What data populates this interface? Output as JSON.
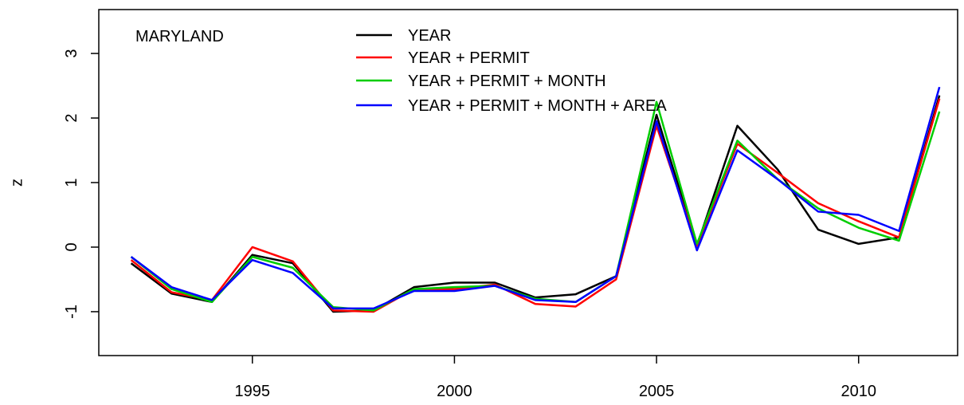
{
  "chart_data": {
    "type": "line",
    "annotation": "MARYLAND",
    "y_label": "z",
    "x": [
      1992,
      1993,
      1994,
      1995,
      1996,
      1997,
      1998,
      1999,
      2000,
      2001,
      2002,
      2003,
      2004,
      2005,
      2006,
      2007,
      2008,
      2009,
      2010,
      2011,
      2012
    ],
    "series": [
      {
        "name": "YEAR",
        "color": "#000000",
        "values": [
          -0.25,
          -0.72,
          -0.85,
          -0.12,
          -0.25,
          -1.0,
          -0.98,
          -0.62,
          -0.55,
          -0.55,
          -0.78,
          -0.73,
          -0.45,
          2.05,
          0.02,
          1.88,
          1.2,
          0.27,
          0.05,
          0.15,
          2.35
        ]
      },
      {
        "name": "YEAR + PERMIT",
        "color": "#ff0000",
        "values": [
          -0.2,
          -0.7,
          -0.82,
          0.0,
          -0.22,
          -0.98,
          -1.0,
          -0.65,
          -0.65,
          -0.58,
          -0.88,
          -0.92,
          -0.5,
          1.88,
          0.02,
          1.6,
          1.15,
          0.68,
          0.4,
          0.15,
          2.3
        ]
      },
      {
        "name": "YEAR + PERMIT + MONTH",
        "color": "#00cd00",
        "values": [
          -0.15,
          -0.65,
          -0.85,
          -0.15,
          -0.32,
          -0.93,
          -0.98,
          -0.65,
          -0.62,
          -0.6,
          -0.8,
          -0.85,
          -0.45,
          2.25,
          0.05,
          1.65,
          1.05,
          0.6,
          0.3,
          0.1,
          2.1
        ]
      },
      {
        "name": "YEAR + PERMIT + MONTH + AREA",
        "color": "#0000ff",
        "values": [
          -0.15,
          -0.62,
          -0.82,
          -0.2,
          -0.4,
          -0.95,
          -0.95,
          -0.68,
          -0.68,
          -0.6,
          -0.82,
          -0.85,
          -0.45,
          1.95,
          -0.05,
          1.5,
          1.05,
          0.55,
          0.5,
          0.25,
          2.48
        ]
      }
    ],
    "xlim": [
      1991.2,
      2012.45
    ],
    "xticks": [
      1995,
      2000,
      2005,
      2010
    ],
    "ylim": [
      -1.68,
      3.68
    ],
    "yticks": [
      -1,
      0,
      1,
      2,
      3
    ]
  }
}
